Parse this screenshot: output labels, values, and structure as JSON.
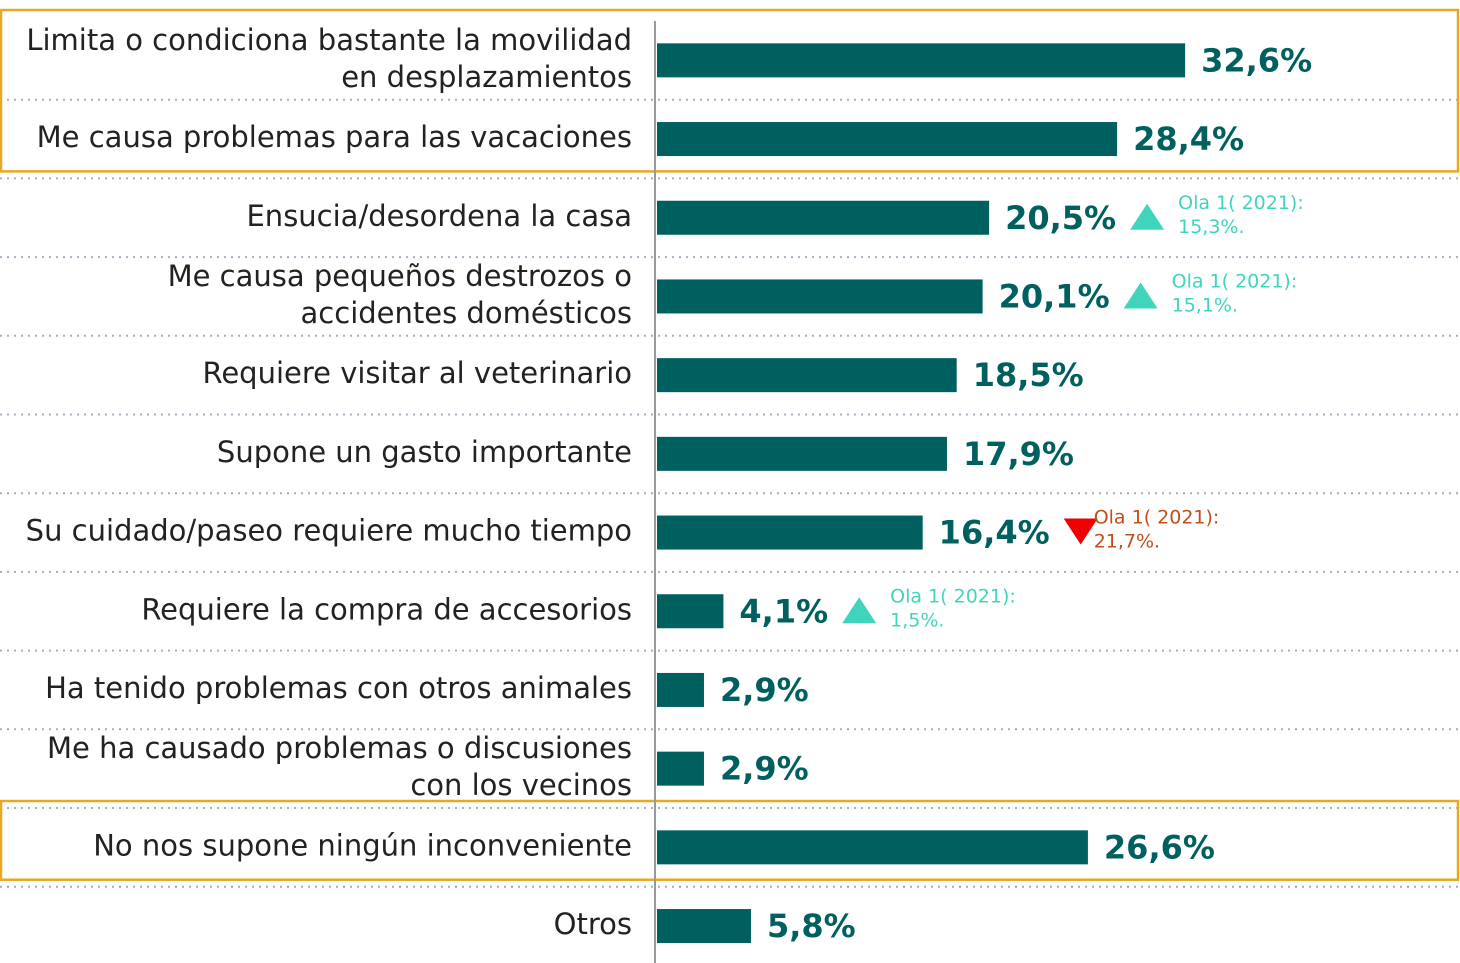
{
  "chart_data": {
    "type": "bar",
    "orientation": "horizontal",
    "categories": [
      "Limita o condiciona bastante la movilidad\nen desplazamientos",
      "Me causa problemas para las vacaciones",
      "Ensucia/desordena la casa",
      "Me causa pequeños destrozos o\naccidentes domésticos",
      "Requiere visitar al veterinario",
      "Supone un gasto importante",
      "Su cuidado/paseo requiere mucho tiempo",
      "Requiere la compra de accesorios",
      "Ha tenido problemas con otros animales",
      "Me ha causado problemas o discusiones\ncon los vecinos",
      "No nos supone ningún inconveniente",
      "Otros"
    ],
    "values": [
      32.6,
      28.4,
      20.5,
      20.1,
      18.5,
      17.9,
      16.4,
      4.1,
      2.9,
      2.9,
      26.6,
      5.8
    ],
    "value_labels": [
      "32,6%",
      "28,4%",
      "20,5%",
      "20,1%",
      "18,5%",
      "17,9%",
      "16,4%",
      "4,1%",
      "2,9%",
      "2,9%",
      "26,6%",
      "5,8%"
    ],
    "annotations": [
      null,
      null,
      {
        "text": "Ola 1( 2021):\n15,3%.",
        "trend": "up"
      },
      {
        "text": "Ola 1( 2021):\n15,1%.",
        "trend": "up"
      },
      null,
      null,
      {
        "text": "Ola 1( 2021):\n21,7%.",
        "trend": "down"
      },
      {
        "text": "Ola 1( 2021):\n1,5%.",
        "trend": "up"
      },
      null,
      null,
      null,
      null
    ],
    "highlighted": [
      true,
      true,
      false,
      false,
      false,
      false,
      false,
      false,
      false,
      false,
      true,
      false
    ],
    "color": "#005f5f",
    "up_color": "#40d4bc",
    "down_color": "#f00000",
    "down_text_color": "#c0501a",
    "highlight_color": "#e8a820",
    "xlim": [
      0,
      40
    ]
  }
}
